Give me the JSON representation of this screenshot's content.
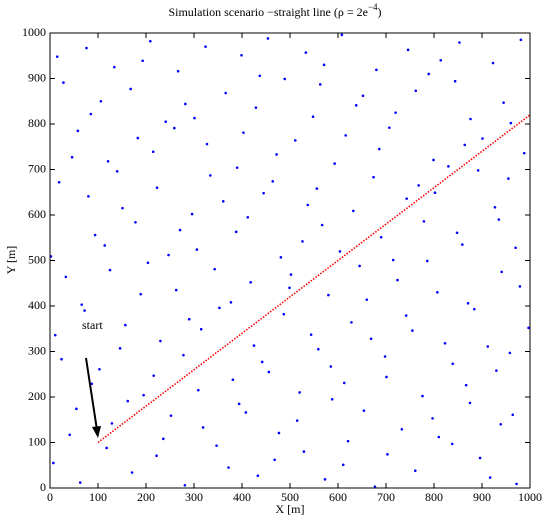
{
  "chart_data": {
    "type": "scatter",
    "title": "Simulation scenario −straight line (ρ = 2e",
    "title_superscript": "−4",
    "title_end": ")",
    "xlabel": "X [m]",
    "ylabel": "Y [m]",
    "xlim": [
      0,
      1000
    ],
    "ylim": [
      0,
      1000
    ],
    "xticks": [
      0,
      100,
      200,
      300,
      400,
      500,
      600,
      700,
      800,
      900,
      1000
    ],
    "yticks": [
      0,
      100,
      200,
      300,
      400,
      500,
      600,
      700,
      800,
      900,
      1000
    ],
    "annotations": [
      {
        "text": "start"
      }
    ],
    "series": [
      {
        "color": "#0000ff",
        "style": "dots",
        "x": [
          7,
          63,
          118,
          171,
          222,
          281,
          347,
          372,
          433,
          468,
          529,
          573,
          611,
          677,
          703,
          761,
          838,
          896,
          917,
          972,
          41,
          55,
          129,
          162,
          236,
          252,
          319,
          394,
          408,
          477,
          515,
          588,
          621,
          654,
          733,
          797,
          810,
          875,
          939,
          964,
          24,
          87,
          103,
          195,
          216,
          278,
          309,
          381,
          442,
          456,
          520,
          585,
          613,
          698,
          701,
          776,
          839,
          867,
          930,
          958,
          11,
          72,
          146,
          157,
          230,
          290,
          315,
          353,
          425,
          487,
          544,
          559,
          628,
          669,
          742,
          755,
          823,
          884,
          912,
          997,
          33,
          66,
          125,
          189,
          204,
          263,
          343,
          377,
          418,
          499,
          502,
          580,
          645,
          660,
          724,
          786,
          807,
          871,
          941,
          979,
          2,
          94,
          114,
          178,
          247,
          271,
          306,
          388,
          412,
          481,
          526,
          567,
          604,
          690,
          715,
          779,
          848,
          859,
          935,
          970,
          19,
          80,
          140,
          151,
          223,
          296,
          334,
          361,
          445,
          464,
          537,
          556,
          632,
          674,
          743,
          768,
          802,
          892,
          927,
          955,
          46,
          58,
          121,
          183,
          215,
          259,
          327,
          390,
          403,
          472,
          511,
          593,
          616,
          686,
          707,
          799,
          830,
          864,
          901,
          988,
          28,
          85,
          106,
          168,
          241,
          282,
          301,
          366,
          429,
          489,
          548,
          563,
          638,
          652,
          720,
          762,
          844,
          876,
          945,
          960,
          15,
          76,
          134,
          193,
          209,
          267,
          324,
          399,
          437,
          454,
          533,
          571,
          608,
          680,
          746,
          789,
          814,
          853,
          923,
          981
        ],
        "values": [
          55,
          12,
          88,
          34,
          71,
          6,
          93,
          45,
          27,
          62,
          80,
          19,
          51,
          3,
          74,
          38,
          97,
          66,
          23,
          9,
          117,
          174,
          142,
          191,
          108,
          159,
          133,
          185,
          166,
          121,
          148,
          195,
          103,
          170,
          129,
          153,
          112,
          187,
          140,
          161,
          283,
          229,
          261,
          204,
          247,
          292,
          215,
          238,
          277,
          255,
          210,
          267,
          231,
          289,
          244,
          202,
          273,
          226,
          258,
          297,
          336,
          390,
          307,
          358,
          323,
          371,
          349,
          396,
          313,
          382,
          337,
          305,
          364,
          328,
          379,
          346,
          318,
          393,
          311,
          352,
          464,
          403,
          479,
          426,
          495,
          435,
          481,
          408,
          452,
          440,
          469,
          424,
          488,
          414,
          457,
          499,
          430,
          406,
          475,
          443,
          509,
          556,
          533,
          584,
          512,
          567,
          524,
          563,
          595,
          507,
          542,
          578,
          520,
          551,
          501,
          586,
          561,
          535,
          590,
          528,
          672,
          641,
          696,
          615,
          660,
          602,
          687,
          630,
          648,
          674,
          622,
          658,
          609,
          683,
          636,
          665,
          649,
          698,
          617,
          680,
          727,
          785,
          718,
          769,
          739,
          791,
          756,
          704,
          781,
          733,
          764,
          713,
          775,
          745,
          792,
          721,
          707,
          754,
          768,
          736,
          891,
          822,
          850,
          877,
          805,
          844,
          813,
          868,
          836,
          899,
          816,
          887,
          841,
          862,
          825,
          873,
          894,
          811,
          847,
          802,
          948,
          967,
          925,
          939,
          982,
          916,
          970,
          951,
          906,
          988,
          957,
          930,
          996,
          919,
          963,
          910,
          940,
          979,
          934,
          985
        ]
      },
      {
        "color": "#ff0000",
        "style": "dotted-line",
        "x": [
          100,
          150,
          200,
          250,
          300,
          350,
          400,
          450,
          500,
          550,
          600,
          650,
          700,
          750,
          800,
          850,
          900,
          950,
          1000
        ],
        "values": [
          100,
          140,
          180,
          220,
          260,
          300,
          340,
          380,
          420,
          460,
          500,
          540,
          580,
          620,
          660,
          700,
          740,
          780,
          820
        ]
      }
    ]
  }
}
